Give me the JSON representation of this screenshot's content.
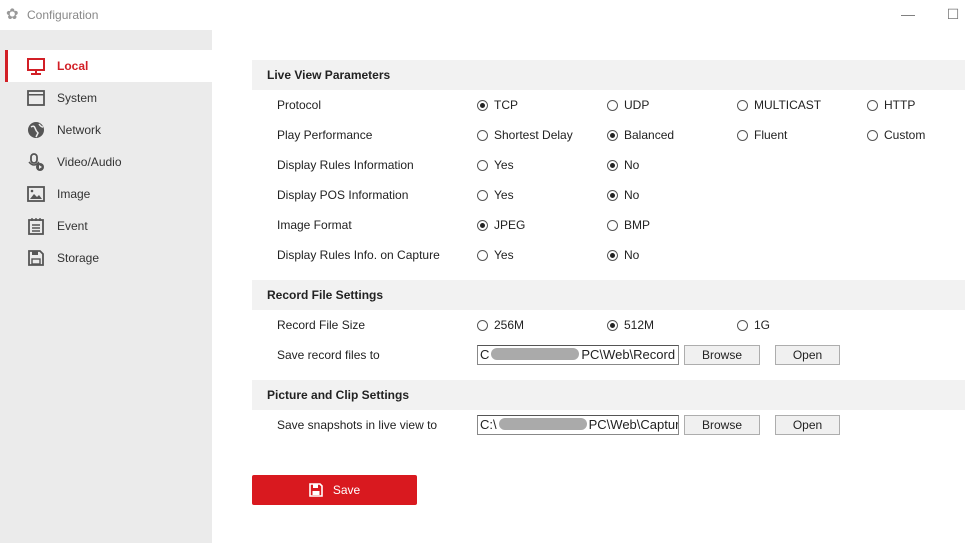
{
  "window": {
    "title": "Configuration",
    "minimize": "—",
    "maximize": "☐"
  },
  "sidebar": {
    "items": [
      {
        "label": "Local",
        "icon": "monitor-icon",
        "active": true
      },
      {
        "label": "System",
        "icon": "window-icon"
      },
      {
        "label": "Network",
        "icon": "globe-icon"
      },
      {
        "label": "Video/Audio",
        "icon": "mic-play-icon"
      },
      {
        "label": "Image",
        "icon": "image-icon"
      },
      {
        "label": "Event",
        "icon": "notepad-icon"
      },
      {
        "label": "Storage",
        "icon": "floppy-icon"
      }
    ]
  },
  "accent": "#d9191f",
  "sections": {
    "live": {
      "title": "Live View Parameters",
      "rows": [
        {
          "label": "Protocol",
          "options": [
            "TCP",
            "UDP",
            "MULTICAST",
            "HTTP"
          ],
          "selected": 0
        },
        {
          "label": "Play Performance",
          "options": [
            "Shortest Delay",
            "Balanced",
            "Fluent",
            "Custom"
          ],
          "selected": 1
        },
        {
          "label": "Display Rules Information",
          "options": [
            "Yes",
            "No"
          ],
          "selected": 1
        },
        {
          "label": "Display POS Information",
          "options": [
            "Yes",
            "No"
          ],
          "selected": 1
        },
        {
          "label": "Image Format",
          "options": [
            "JPEG",
            "BMP"
          ],
          "selected": 0
        },
        {
          "label": "Display Rules Info. on Capture",
          "options": [
            "Yes",
            "No"
          ],
          "selected": 1
        }
      ]
    },
    "record": {
      "title": "Record File Settings",
      "size": {
        "label": "Record File Size",
        "options": [
          "256M",
          "512M",
          "1G"
        ],
        "selected": 1
      },
      "path": {
        "label": "Save record files to",
        "prefix": "C",
        "suffix": "PC\\Web\\Record",
        "browse": "Browse",
        "open": "Open"
      }
    },
    "picture": {
      "title": "Picture and Clip Settings",
      "path": {
        "label": "Save snapshots in live view to",
        "prefix": "C:\\",
        "suffix": "PC\\Web\\Capture",
        "browse": "Browse",
        "open": "Open"
      }
    }
  },
  "save_label": "Save"
}
